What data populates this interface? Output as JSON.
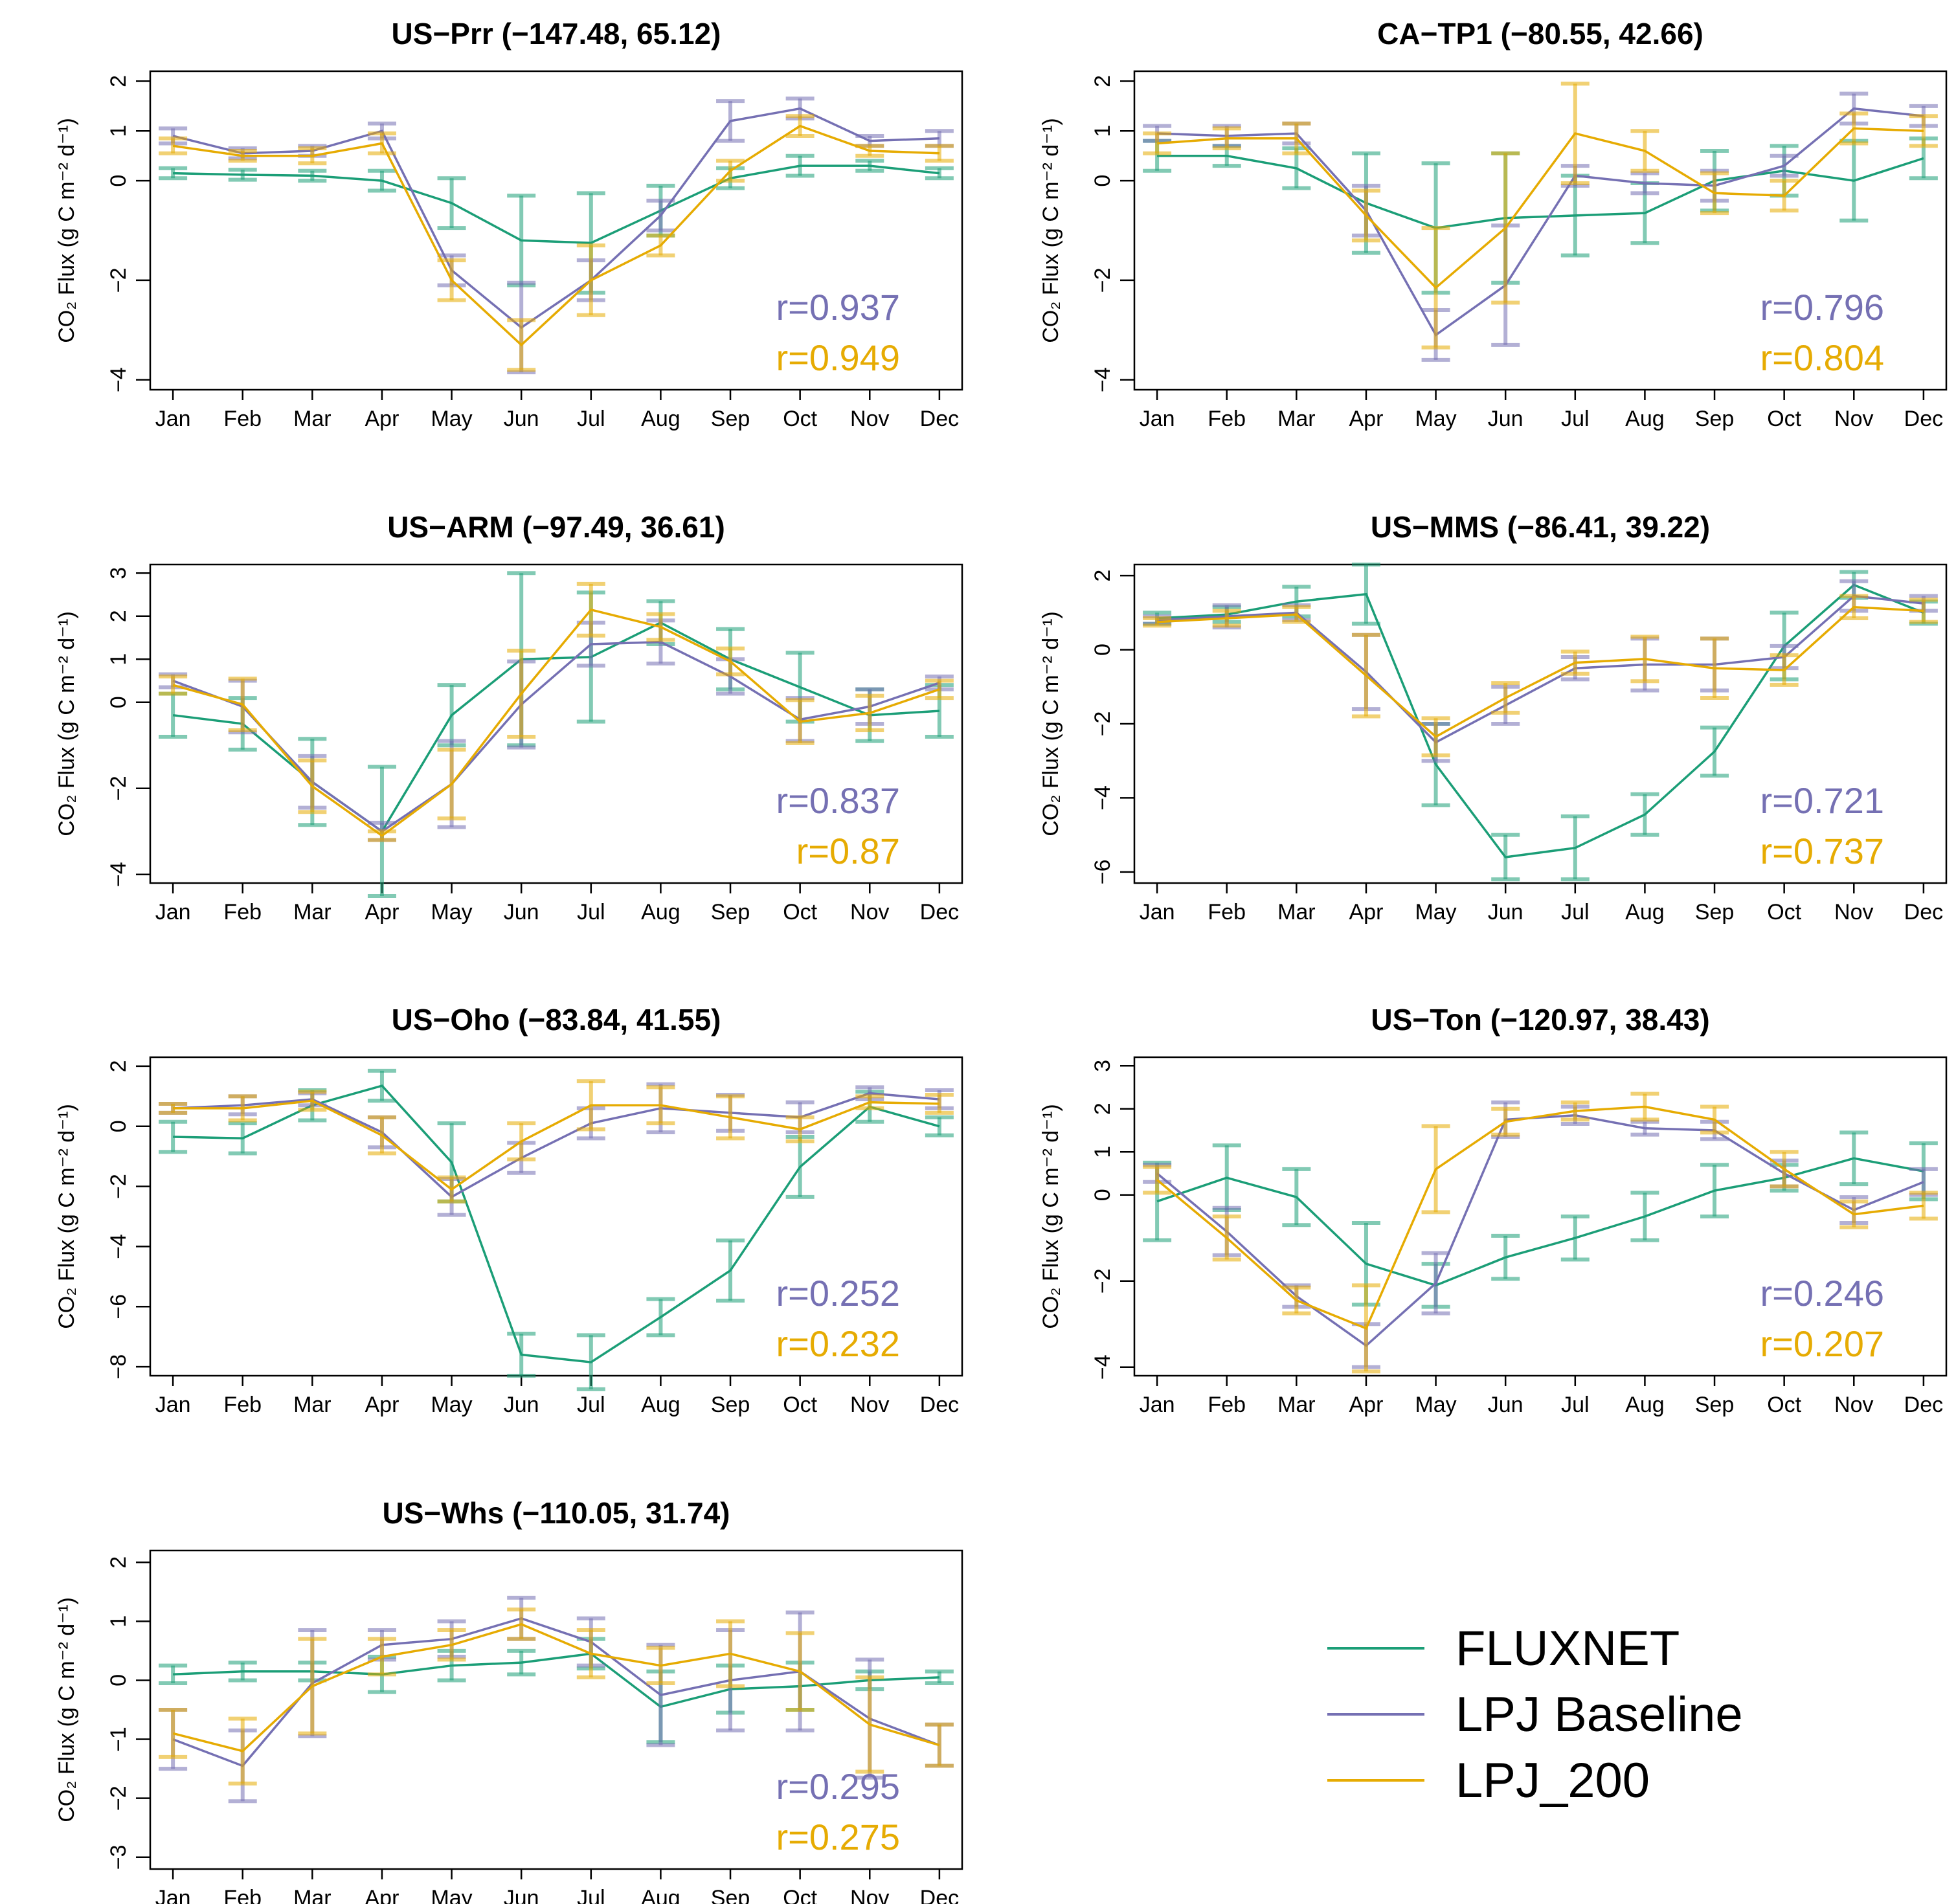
{
  "figure": {
    "ylabel": "CO₂ Flux (g C m⁻² d⁻¹)",
    "months": [
      "Jan",
      "Feb",
      "Mar",
      "Apr",
      "May",
      "Jun",
      "Jul",
      "Aug",
      "Sep",
      "Oct",
      "Nov",
      "Dec"
    ]
  },
  "legend": {
    "items": [
      {
        "name": "FLUXNET",
        "color": "#1b9e77"
      },
      {
        "name": "LPJ Baseline",
        "color": "#7570b3"
      },
      {
        "name": "LPJ_200",
        "color": "#e6ab02"
      }
    ]
  },
  "chart_data": [
    {
      "type": "line",
      "title": "US−Prr (−147.48, 65.12)",
      "xlabel": "",
      "ylabel": "CO2 Flux (g C m-2 d-1)",
      "categories": [
        "Jan",
        "Feb",
        "Mar",
        "Apr",
        "May",
        "Jun",
        "Jul",
        "Aug",
        "Sep",
        "Oct",
        "Nov",
        "Dec"
      ],
      "ylim": [
        -4.2,
        2.2
      ],
      "yticks": [
        -4,
        -2,
        0,
        1,
        2
      ],
      "ytick_labels": [
        "−4",
        "−2",
        "0",
        "1",
        "2"
      ],
      "series": [
        {
          "name": "FLUXNET",
          "color": "#1b9e77",
          "values": [
            0.15,
            0.12,
            0.1,
            0.0,
            -0.45,
            -1.2,
            -1.25,
            -0.6,
            0.05,
            0.3,
            0.3,
            0.15
          ],
          "err": [
            0.1,
            0.1,
            0.1,
            0.2,
            0.5,
            0.9,
            1.0,
            0.5,
            0.2,
            0.2,
            0.1,
            0.1
          ]
        },
        {
          "name": "LPJ Baseline",
          "color": "#7570b3",
          "values": [
            0.9,
            0.55,
            0.6,
            1.0,
            -1.8,
            -2.95,
            -2.0,
            -0.7,
            1.2,
            1.45,
            0.8,
            0.85
          ],
          "err": [
            0.15,
            0.1,
            0.1,
            0.15,
            0.3,
            0.9,
            0.4,
            0.3,
            0.4,
            0.2,
            0.1,
            0.15
          ]
        },
        {
          "name": "LPJ_200",
          "color": "#e6ab02",
          "values": [
            0.7,
            0.5,
            0.5,
            0.75,
            -2.0,
            -3.3,
            -2.0,
            -1.3,
            0.2,
            1.1,
            0.6,
            0.55
          ],
          "err": [
            0.15,
            0.1,
            0.15,
            0.2,
            0.4,
            0.5,
            0.7,
            0.2,
            0.2,
            0.2,
            0.1,
            0.15
          ]
        }
      ],
      "annotations": [
        {
          "text": "r=0.937",
          "color": "#7570b3"
        },
        {
          "text": "r=0.949",
          "color": "#e6ab02"
        }
      ]
    },
    {
      "type": "line",
      "title": "CA−TP1 (−80.55, 42.66)",
      "xlabel": "",
      "ylabel": "CO2 Flux (g C m-2 d-1)",
      "categories": [
        "Jan",
        "Feb",
        "Mar",
        "Apr",
        "May",
        "Jun",
        "Jul",
        "Aug",
        "Sep",
        "Oct",
        "Nov",
        "Dec"
      ],
      "ylim": [
        -4.2,
        2.2
      ],
      "yticks": [
        -4,
        -2,
        0,
        1,
        2
      ],
      "ytick_labels": [
        "−4",
        "−2",
        "0",
        "1",
        "2"
      ],
      "series": [
        {
          "name": "FLUXNET",
          "color": "#1b9e77",
          "values": [
            0.5,
            0.5,
            0.25,
            -0.45,
            -0.95,
            -0.75,
            -0.7,
            -0.65,
            0.0,
            0.2,
            0.0,
            0.45
          ],
          "err": [
            0.3,
            0.2,
            0.4,
            1.0,
            1.3,
            1.3,
            0.8,
            0.6,
            0.6,
            0.5,
            0.8,
            0.4
          ]
        },
        {
          "name": "LPJ Baseline",
          "color": "#7570b3",
          "values": [
            0.95,
            0.9,
            0.95,
            -0.6,
            -3.1,
            -2.1,
            0.1,
            -0.05,
            -0.1,
            0.3,
            1.45,
            1.3
          ],
          "err": [
            0.15,
            0.2,
            0.2,
            0.5,
            0.5,
            1.2,
            0.2,
            0.2,
            0.3,
            0.2,
            0.3,
            0.2
          ]
        },
        {
          "name": "LPJ_200",
          "color": "#e6ab02",
          "values": [
            0.75,
            0.85,
            0.85,
            -0.7,
            -2.15,
            -0.95,
            0.95,
            0.6,
            -0.25,
            -0.3,
            1.05,
            1.0
          ],
          "err": [
            0.2,
            0.2,
            0.3,
            0.5,
            1.2,
            1.5,
            1.0,
            0.4,
            0.4,
            0.3,
            0.3,
            0.3
          ]
        }
      ],
      "annotations": [
        {
          "text": "r=0.796",
          "color": "#7570b3"
        },
        {
          "text": "r=0.804",
          "color": "#e6ab02"
        }
      ]
    },
    {
      "type": "line",
      "title": "US−ARM (−97.49, 36.61)",
      "xlabel": "",
      "ylabel": "CO2 Flux (g C m-2 d-1)",
      "categories": [
        "Jan",
        "Feb",
        "Mar",
        "Apr",
        "May",
        "Jun",
        "Jul",
        "Aug",
        "Sep",
        "Oct",
        "Nov",
        "Dec"
      ],
      "ylim": [
        -4.2,
        3.2
      ],
      "yticks": [
        -4,
        -2,
        0,
        1,
        2,
        3
      ],
      "ytick_labels": [
        "−4",
        "−2",
        "0",
        "1",
        "2",
        "3"
      ],
      "series": [
        {
          "name": "FLUXNET",
          "color": "#1b9e77",
          "values": [
            -0.3,
            -0.5,
            -1.85,
            -3.0,
            -0.3,
            1.0,
            1.05,
            1.85,
            1.0,
            0.35,
            -0.3,
            -0.2
          ],
          "err": [
            0.5,
            0.6,
            1.0,
            1.5,
            0.7,
            2.0,
            1.5,
            0.5,
            0.7,
            0.8,
            0.6,
            0.6
          ]
        },
        {
          "name": "LPJ Baseline",
          "color": "#7570b3",
          "values": [
            0.5,
            -0.1,
            -1.85,
            -3.0,
            -1.9,
            -0.05,
            1.35,
            1.4,
            0.6,
            -0.4,
            -0.1,
            0.45
          ],
          "err": [
            0.15,
            0.6,
            0.6,
            0.2,
            1.0,
            1.0,
            0.5,
            0.5,
            0.4,
            0.5,
            0.4,
            0.15
          ]
        },
        {
          "name": "LPJ_200",
          "color": "#e6ab02",
          "values": [
            0.4,
            -0.05,
            -1.95,
            -3.1,
            -1.9,
            0.2,
            2.15,
            1.75,
            0.95,
            -0.45,
            -0.25,
            0.3
          ],
          "err": [
            0.2,
            0.6,
            0.6,
            0.1,
            0.8,
            1.0,
            0.6,
            0.3,
            0.3,
            0.5,
            0.4,
            0.2
          ]
        }
      ],
      "annotations": [
        {
          "text": "r=0.837",
          "color": "#7570b3"
        },
        {
          "text": "r=0.87",
          "color": "#e6ab02"
        }
      ]
    },
    {
      "type": "line",
      "title": "US−MMS (−86.41, 39.22)",
      "xlabel": "",
      "ylabel": "CO2 Flux (g C m-2 d-1)",
      "categories": [
        "Jan",
        "Feb",
        "Mar",
        "Apr",
        "May",
        "Jun",
        "Jul",
        "Aug",
        "Sep",
        "Oct",
        "Nov",
        "Dec"
      ],
      "ylim": [
        -6.3,
        2.3
      ],
      "yticks": [
        -6,
        -4,
        -2,
        0,
        2
      ],
      "ytick_labels": [
        "−6",
        "−4",
        "−2",
        "0",
        "2"
      ],
      "series": [
        {
          "name": "FLUXNET",
          "color": "#1b9e77",
          "values": [
            0.85,
            0.95,
            1.3,
            1.5,
            -3.1,
            -5.6,
            -5.35,
            -4.45,
            -2.75,
            0.1,
            1.75,
            1.0
          ],
          "err": [
            0.15,
            0.2,
            0.4,
            0.8,
            1.1,
            0.6,
            0.85,
            0.55,
            0.65,
            0.9,
            0.35,
            0.3
          ]
        },
        {
          "name": "LPJ Baseline",
          "color": "#7570b3",
          "values": [
            0.8,
            0.9,
            1.0,
            -0.6,
            -2.5,
            -1.5,
            -0.5,
            -0.4,
            -0.4,
            -0.2,
            1.45,
            1.25
          ],
          "err": [
            0.1,
            0.3,
            0.2,
            1.0,
            0.5,
            0.5,
            0.3,
            0.7,
            0.7,
            0.3,
            0.4,
            0.2
          ]
        },
        {
          "name": "LPJ_200",
          "color": "#e6ab02",
          "values": [
            0.75,
            0.85,
            0.95,
            -0.7,
            -2.35,
            -1.3,
            -0.35,
            -0.25,
            -0.5,
            -0.55,
            1.15,
            1.05
          ],
          "err": [
            0.1,
            0.2,
            0.2,
            1.1,
            0.5,
            0.4,
            0.3,
            0.6,
            0.8,
            0.4,
            0.3,
            0.3
          ]
        }
      ],
      "annotations": [
        {
          "text": "r=0.721",
          "color": "#7570b3"
        },
        {
          "text": "r=0.737",
          "color": "#e6ab02"
        }
      ]
    },
    {
      "type": "line",
      "title": "US−Oho (−83.84, 41.55)",
      "xlabel": "",
      "ylabel": "CO2 Flux (g C m-2 d-1)",
      "categories": [
        "Jan",
        "Feb",
        "Mar",
        "Apr",
        "May",
        "Jun",
        "Jul",
        "Aug",
        "Sep",
        "Oct",
        "Nov",
        "Dec"
      ],
      "ylim": [
        -8.3,
        2.3
      ],
      "yticks": [
        -8,
        -6,
        -4,
        -2,
        0,
        2
      ],
      "ytick_labels": [
        "−8",
        "−6",
        "−4",
        "−2",
        "0",
        "2"
      ],
      "series": [
        {
          "name": "FLUXNET",
          "color": "#1b9e77",
          "values": [
            -0.35,
            -0.4,
            0.7,
            1.35,
            -1.2,
            -7.6,
            -7.85,
            -6.35,
            -4.8,
            -1.35,
            0.65,
            0.0
          ],
          "err": [
            0.5,
            0.5,
            0.5,
            0.5,
            1.3,
            0.7,
            0.9,
            0.6,
            1.0,
            1.0,
            0.5,
            0.3
          ]
        },
        {
          "name": "LPJ Baseline",
          "color": "#7570b3",
          "values": [
            0.6,
            0.7,
            0.9,
            -0.2,
            -2.35,
            -1.05,
            0.1,
            0.6,
            0.45,
            0.3,
            1.1,
            0.9
          ],
          "err": [
            0.15,
            0.3,
            0.2,
            0.5,
            0.6,
            0.5,
            0.5,
            0.8,
            0.6,
            0.5,
            0.2,
            0.3
          ]
        },
        {
          "name": "LPJ_200",
          "color": "#e6ab02",
          "values": [
            0.6,
            0.6,
            0.85,
            -0.3,
            -2.1,
            -0.5,
            0.7,
            0.7,
            0.3,
            -0.1,
            0.8,
            0.75
          ],
          "err": [
            0.15,
            0.4,
            0.3,
            0.6,
            0.4,
            0.6,
            0.8,
            0.6,
            0.7,
            0.4,
            0.2,
            0.3
          ]
        }
      ],
      "annotations": [
        {
          "text": "r=0.252",
          "color": "#7570b3"
        },
        {
          "text": "r=0.232",
          "color": "#e6ab02"
        }
      ]
    },
    {
      "type": "line",
      "title": "US−Ton (−120.97, 38.43)",
      "xlabel": "",
      "ylabel": "CO2 Flux (g C m-2 d-1)",
      "categories": [
        "Jan",
        "Feb",
        "Mar",
        "Apr",
        "May",
        "Jun",
        "Jul",
        "Aug",
        "Sep",
        "Oct",
        "Nov",
        "Dec"
      ],
      "ylim": [
        -4.2,
        3.2
      ],
      "yticks": [
        -4,
        -2,
        0,
        1,
        2,
        3
      ],
      "ytick_labels": [
        "−4",
        "−2",
        "0",
        "1",
        "2",
        "3"
      ],
      "series": [
        {
          "name": "FLUXNET",
          "color": "#1b9e77",
          "values": [
            -0.15,
            0.4,
            -0.05,
            -1.6,
            -2.1,
            -1.45,
            -1.0,
            -0.5,
            0.1,
            0.4,
            0.85,
            0.55
          ],
          "err": [
            0.9,
            0.75,
            0.65,
            0.95,
            0.5,
            0.5,
            0.5,
            0.55,
            0.6,
            0.3,
            0.6,
            0.65
          ]
        },
        {
          "name": "LPJ Baseline",
          "color": "#7570b3",
          "values": [
            0.5,
            -0.85,
            -2.35,
            -3.5,
            -2.05,
            1.75,
            1.85,
            1.55,
            1.5,
            0.5,
            -0.35,
            0.3
          ],
          "err": [
            0.2,
            0.55,
            0.25,
            0.5,
            0.7,
            0.4,
            0.2,
            0.15,
            0.2,
            0.3,
            0.3,
            0.3
          ]
        },
        {
          "name": "LPJ_200",
          "color": "#e6ab02",
          "values": [
            0.35,
            -1.0,
            -2.45,
            -3.1,
            0.6,
            1.7,
            1.95,
            2.05,
            1.75,
            0.6,
            -0.45,
            -0.25
          ],
          "err": [
            0.3,
            0.5,
            0.3,
            1.0,
            1.0,
            0.3,
            0.2,
            0.3,
            0.3,
            0.4,
            0.3,
            0.3
          ]
        }
      ],
      "annotations": [
        {
          "text": "r=0.246",
          "color": "#7570b3"
        },
        {
          "text": "r=0.207",
          "color": "#e6ab02"
        }
      ]
    },
    {
      "type": "line",
      "title": "US−Whs (−110.05, 31.74)",
      "xlabel": "",
      "ylabel": "CO2 Flux (g C m-2 d-1)",
      "categories": [
        "Jan",
        "Feb",
        "Mar",
        "Apr",
        "May",
        "Jun",
        "Jul",
        "Aug",
        "Sep",
        "Oct",
        "Nov",
        "Dec"
      ],
      "ylim": [
        -3.2,
        2.2
      ],
      "yticks": [
        -3,
        -2,
        -1,
        0,
        1,
        2
      ],
      "ytick_labels": [
        "−3",
        "−2",
        "−1",
        "0",
        "1",
        "2"
      ],
      "series": [
        {
          "name": "FLUXNET",
          "color": "#1b9e77",
          "values": [
            0.1,
            0.15,
            0.15,
            0.1,
            0.25,
            0.3,
            0.45,
            -0.45,
            -0.15,
            -0.1,
            0.0,
            0.05
          ],
          "err": [
            0.15,
            0.15,
            0.15,
            0.3,
            0.25,
            0.2,
            0.25,
            0.6,
            0.4,
            0.4,
            0.15,
            0.1
          ]
        },
        {
          "name": "LPJ Baseline",
          "color": "#7570b3",
          "values": [
            -1.0,
            -1.45,
            -0.05,
            0.6,
            0.7,
            1.05,
            0.65,
            -0.25,
            0.0,
            0.15,
            -0.65,
            -1.1
          ],
          "err": [
            0.5,
            0.6,
            0.9,
            0.25,
            0.3,
            0.35,
            0.4,
            0.85,
            0.85,
            1.0,
            1.0,
            0.35
          ]
        },
        {
          "name": "LPJ_200",
          "color": "#e6ab02",
          "values": [
            -0.9,
            -1.2,
            -0.1,
            0.4,
            0.6,
            0.95,
            0.45,
            0.25,
            0.45,
            0.15,
            -0.75,
            -1.1
          ],
          "err": [
            0.4,
            0.55,
            0.8,
            0.3,
            0.25,
            0.25,
            0.4,
            0.3,
            0.55,
            0.65,
            0.8,
            0.35
          ]
        }
      ],
      "annotations": [
        {
          "text": "r=0.295",
          "color": "#7570b3"
        },
        {
          "text": "r=0.275",
          "color": "#e6ab02"
        }
      ]
    }
  ]
}
